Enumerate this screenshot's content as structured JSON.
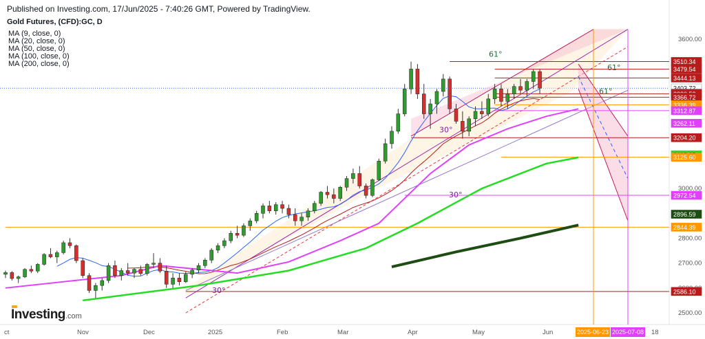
{
  "header": {
    "published": "Published on Investing.com, 17/Jun/2025 - 7:40:26 GMT, Powered by TradingView.",
    "symbol": "Gold Futures, (CFD):GC, D"
  },
  "indicators": [
    {
      "label": "MA (9, close, 0)",
      "color": "#2962ff"
    },
    {
      "label": "MA (20, close, 0)",
      "color": "#b71c1c"
    },
    {
      "label": "MA (50, close, 0)",
      "color": "#e040fb"
    },
    {
      "label": "MA (100, close, 0)",
      "color": "#22dd22"
    },
    {
      "label": "MA (200, close, 0)",
      "color": "#1e4d13"
    }
  ],
  "logo": {
    "brand": "Investing",
    "suffix": ".com"
  },
  "chart_data": {
    "type": "candlestick",
    "title": "Gold Futures, (CFD):GC, D",
    "y_axis": {
      "range": [
        2480,
        3620
      ],
      "ticks": [
        2500,
        2600,
        2700,
        2800,
        3000,
        3600
      ]
    },
    "x_axis": {
      "ticks": [
        "ct",
        "Nov",
        "Dec",
        "2025",
        "Feb",
        "Mar",
        "Apr",
        "May",
        "Jun",
        "18"
      ],
      "highlighted": [
        {
          "label": "2025-06-23",
          "color": "#ff9800"
        },
        {
          "label": "2025-07-08",
          "color": "#e040fb"
        }
      ]
    },
    "ohlc_sample": [
      [
        2655,
        2670,
        2640,
        2662
      ],
      [
        2662,
        2668,
        2630,
        2638
      ],
      [
        2638,
        2650,
        2620,
        2645
      ],
      [
        2645,
        2680,
        2640,
        2675
      ],
      [
        2675,
        2690,
        2660,
        2668
      ],
      [
        2668,
        2700,
        2660,
        2695
      ],
      [
        2695,
        2740,
        2690,
        2735
      ],
      [
        2735,
        2760,
        2720,
        2725
      ],
      [
        2725,
        2750,
        2700,
        2742
      ],
      [
        2742,
        2790,
        2735,
        2782
      ],
      [
        2782,
        2800,
        2760,
        2770
      ],
      [
        2770,
        2775,
        2700,
        2710
      ],
      [
        2710,
        2720,
        2640,
        2650
      ],
      [
        2650,
        2660,
        2580,
        2590
      ],
      [
        2590,
        2620,
        2560,
        2610
      ],
      [
        2610,
        2640,
        2590,
        2630
      ],
      [
        2630,
        2700,
        2620,
        2690
      ],
      [
        2690,
        2710,
        2640,
        2650
      ],
      [
        2650,
        2680,
        2630,
        2670
      ],
      [
        2670,
        2700,
        2650,
        2660
      ],
      [
        2660,
        2680,
        2640,
        2675
      ],
      [
        2675,
        2690,
        2650,
        2658
      ],
      [
        2658,
        2700,
        2650,
        2695
      ],
      [
        2695,
        2740,
        2680,
        2700
      ],
      [
        2700,
        2720,
        2660,
        2668
      ],
      [
        2668,
        2690,
        2600,
        2615
      ],
      [
        2615,
        2660,
        2600,
        2640
      ],
      [
        2640,
        2660,
        2610,
        2625
      ],
      [
        2625,
        2665,
        2620,
        2655
      ],
      [
        2655,
        2680,
        2640,
        2672
      ],
      [
        2672,
        2700,
        2660,
        2690
      ],
      [
        2690,
        2720,
        2680,
        2712
      ],
      [
        2712,
        2760,
        2700,
        2752
      ],
      [
        2752,
        2780,
        2740,
        2770
      ],
      [
        2770,
        2800,
        2760,
        2790
      ],
      [
        2790,
        2830,
        2780,
        2820
      ],
      [
        2820,
        2850,
        2800,
        2812
      ],
      [
        2812,
        2860,
        2805,
        2850
      ],
      [
        2850,
        2880,
        2830,
        2870
      ],
      [
        2870,
        2910,
        2860,
        2900
      ],
      [
        2900,
        2940,
        2880,
        2930
      ],
      [
        2930,
        2950,
        2900,
        2910
      ],
      [
        2910,
        2945,
        2895,
        2935
      ],
      [
        2935,
        2950,
        2900,
        2920
      ],
      [
        2920,
        2935,
        2880,
        2895
      ],
      [
        2895,
        2920,
        2850,
        2870
      ],
      [
        2870,
        2900,
        2850,
        2885
      ],
      [
        2885,
        2920,
        2870,
        2910
      ],
      [
        2910,
        2950,
        2900,
        2940
      ],
      [
        2940,
        2990,
        2930,
        2985
      ],
      [
        2985,
        3010,
        2960,
        2975
      ],
      [
        2975,
        3000,
        2940,
        2960
      ],
      [
        2960,
        3010,
        2950,
        3005
      ],
      [
        3005,
        3050,
        2990,
        3040
      ],
      [
        3040,
        3080,
        3020,
        3060
      ],
      [
        3060,
        3090,
        3000,
        3010
      ],
      [
        3010,
        3020,
        2960,
        2972
      ],
      [
        2972,
        3040,
        2965,
        3035
      ],
      [
        3035,
        3120,
        3030,
        3110
      ],
      [
        3110,
        3200,
        3100,
        3180
      ],
      [
        3180,
        3250,
        3160,
        3230
      ],
      [
        3230,
        3320,
        3220,
        3300
      ],
      [
        3300,
        3420,
        3290,
        3400
      ],
      [
        3400,
        3510,
        3380,
        3480
      ],
      [
        3480,
        3500,
        3360,
        3380
      ],
      [
        3380,
        3420,
        3280,
        3300
      ],
      [
        3300,
        3360,
        3240,
        3340
      ],
      [
        3340,
        3400,
        3300,
        3390
      ],
      [
        3390,
        3460,
        3370,
        3440
      ],
      [
        3440,
        3450,
        3300,
        3320
      ],
      [
        3320,
        3340,
        3260,
        3270
      ],
      [
        3270,
        3310,
        3200,
        3230
      ],
      [
        3230,
        3290,
        3210,
        3280
      ],
      [
        3280,
        3330,
        3250,
        3310
      ],
      [
        3310,
        3350,
        3280,
        3300
      ],
      [
        3300,
        3380,
        3290,
        3360
      ],
      [
        3360,
        3420,
        3340,
        3400
      ],
      [
        3400,
        3420,
        3330,
        3350
      ],
      [
        3350,
        3400,
        3320,
        3380
      ],
      [
        3380,
        3420,
        3360,
        3410
      ],
      [
        3410,
        3440,
        3380,
        3395
      ],
      [
        3395,
        3440,
        3370,
        3430
      ],
      [
        3430,
        3480,
        3400,
        3470
      ],
      [
        3470,
        3479,
        3380,
        3403
      ]
    ],
    "moving_averages": [
      {
        "name": "MA (9, close, 0)",
        "period": 9,
        "color": "#2962ff"
      },
      {
        "name": "MA (20, close, 0)",
        "period": 20,
        "color": "#b71c1c"
      },
      {
        "name": "MA (50, close, 0)",
        "period": 50,
        "color": "#e040fb",
        "points": [
          [
            0,
            2600
          ],
          [
            18,
            2650
          ],
          [
            24,
            2690
          ],
          [
            30,
            2675
          ],
          [
            36,
            2660
          ],
          [
            44,
            2705
          ],
          [
            52,
            2790
          ],
          [
            58,
            2860
          ],
          [
            62,
            2960
          ],
          [
            66,
            3060
          ],
          [
            72,
            3175
          ],
          [
            78,
            3240
          ],
          [
            84,
            3290
          ],
          [
            89,
            3320
          ]
        ]
      },
      {
        "name": "MA (100, close, 0)",
        "period": 100,
        "color": "#22dd22",
        "points": [
          [
            12,
            2550
          ],
          [
            30,
            2610
          ],
          [
            44,
            2670
          ],
          [
            56,
            2760
          ],
          [
            64,
            2860
          ],
          [
            74,
            3000
          ],
          [
            84,
            3100
          ],
          [
            89,
            3125
          ]
        ]
      },
      {
        "name": "MA (200, close, 0)",
        "period": 200,
        "color": "#1e4d13",
        "points": [
          [
            60,
            2685
          ],
          [
            70,
            2745
          ],
          [
            80,
            2800
          ],
          [
            89,
            2853
          ]
        ]
      }
    ],
    "price_labels": [
      {
        "value": 3510.34,
        "text": "3510.34",
        "bg": "#b71c1c",
        "fg": "#ffffff"
      },
      {
        "value": 3479.54,
        "text": "3479.54",
        "bg": "#b71c1c",
        "fg": "#ffffff"
      },
      {
        "value": 3444.13,
        "text": "3444.13",
        "bg": "#b71c1c",
        "fg": "#ffffff"
      },
      {
        "value": 3403.72,
        "text": "3403.72",
        "bg": "#ffffff",
        "fg": "#131722"
      },
      {
        "value": 3382.8,
        "text": "3382.80",
        "bg": "#2962ff",
        "fg": "#ffffff"
      },
      {
        "value": 3380.53,
        "text": "3380.53",
        "bg": "#b71c1c",
        "fg": "#ffffff"
      },
      {
        "value": 3366.72,
        "text": "3366.72",
        "bg": "#b71c1c",
        "fg": "#ffffff"
      },
      {
        "value": 3336.39,
        "text": "3336.39",
        "bg": "#ff9800",
        "fg": "#ffffff"
      },
      {
        "value": 3312.87,
        "text": "3312.87",
        "bg": "#e040fb",
        "fg": "#ffffff"
      },
      {
        "value": 3262.11,
        "text": "3262.11",
        "bg": "#e040fb",
        "fg": "#ffffff"
      },
      {
        "value": 3204.2,
        "text": "3204.20",
        "bg": "#b71c1c",
        "fg": "#ffffff"
      },
      {
        "value": 3135.27,
        "text": "3135.27",
        "bg": "#22dd22",
        "fg": "#131722"
      },
      {
        "value": 3125.6,
        "text": "3125.60",
        "bg": "#ff9800",
        "fg": "#ffffff"
      },
      {
        "value": 2972.54,
        "text": "2972.54",
        "bg": "#e040fb",
        "fg": "#ffffff"
      },
      {
        "value": 2896.59,
        "text": "2896.59",
        "bg": "#1e4d13",
        "fg": "#ffffff"
      },
      {
        "value": 2844.39,
        "text": "2844.39",
        "bg": "#ff9800",
        "fg": "#ffffff"
      },
      {
        "value": 2586.1,
        "text": "2586.10",
        "bg": "#b71c1c",
        "fg": "#ffffff"
      }
    ],
    "annotations": [
      {
        "text": "61°"
      },
      {
        "text": "61°"
      },
      {
        "text": "61°"
      },
      {
        "text": "30°"
      },
      {
        "text": "30°"
      },
      {
        "text": "30°"
      }
    ]
  }
}
